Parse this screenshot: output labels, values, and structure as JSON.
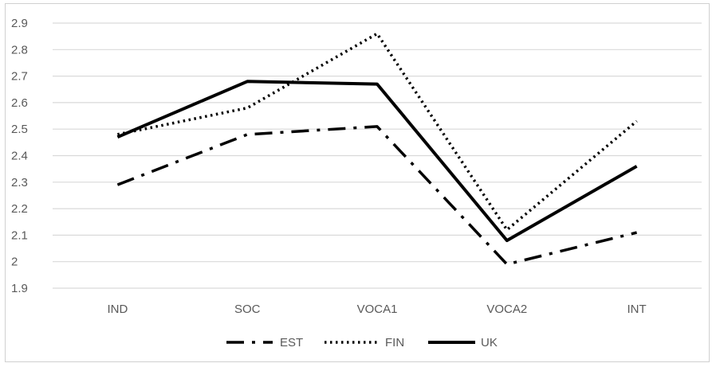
{
  "chart_data": {
    "type": "line",
    "title": "",
    "xlabel": "",
    "ylabel": "",
    "categories": [
      "IND",
      "SOC",
      "VOCA1",
      "VOCA2",
      "INT"
    ],
    "ylim": [
      1.9,
      2.9
    ],
    "yticks": [
      "1.9",
      "2",
      "2.1",
      "2.2",
      "2.3",
      "2.4",
      "2.5",
      "2.6",
      "2.7",
      "2.8",
      "2.9"
    ],
    "grid": true,
    "legend_position": "bottom",
    "series": [
      {
        "name": "EST",
        "values": [
          2.29,
          2.48,
          2.51,
          1.99,
          2.11
        ],
        "style": "dash-dot",
        "color": "#000000"
      },
      {
        "name": "FIN",
        "values": [
          2.48,
          2.58,
          2.86,
          2.12,
          2.53
        ],
        "style": "dotted",
        "color": "#000000"
      },
      {
        "name": "UK",
        "values": [
          2.47,
          2.68,
          2.67,
          2.08,
          2.36
        ],
        "style": "solid",
        "color": "#000000"
      }
    ]
  }
}
